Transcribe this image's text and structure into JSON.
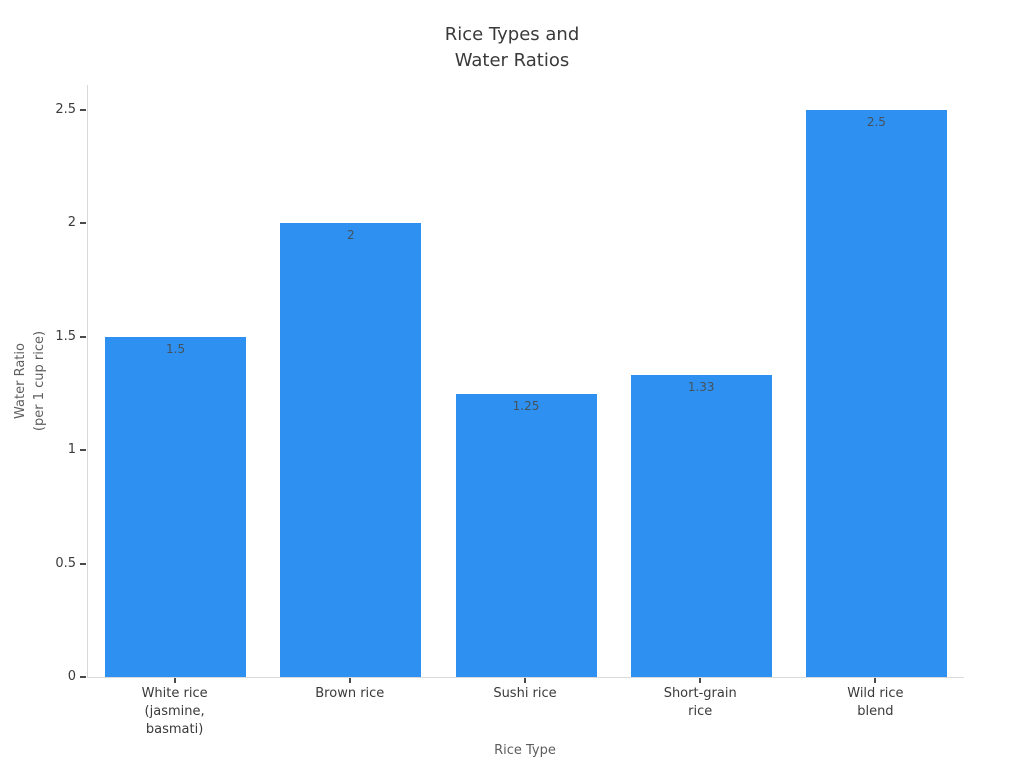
{
  "chart_data": {
    "type": "bar",
    "title": "Rice Types and\nWater Ratios",
    "xlabel": "Rice Type",
    "ylabel": "Water Ratio\n(per 1 cup rice)",
    "categories": [
      "White rice\n(jasmine,\nbasmati)",
      "Brown rice",
      "Sushi rice",
      "Short-grain\nrice",
      "Wild rice\nblend"
    ],
    "values": [
      1.5,
      2,
      1.25,
      1.33,
      2.5
    ],
    "value_labels": [
      "1.5",
      "2",
      "1.25",
      "1.33",
      "2.5"
    ],
    "ylim": [
      0,
      2.5
    ],
    "yticks": [
      0,
      0.5,
      1,
      1.5,
      2,
      2.5
    ],
    "ytick_labels": [
      "0",
      "0.5",
      "1",
      "1.5",
      "2",
      "2.5"
    ],
    "grid": false,
    "legend": "none",
    "colors": {
      "bar": "#2e91f2",
      "axis_line": "#d9d9d9",
      "tick_mark": "#4a4a4a",
      "tick_label": "#3c3c3c",
      "bar_value_label": "#44525c",
      "title": "#3a3a3a",
      "axis_title": "#5e5e5e",
      "background": "#ffffff"
    }
  }
}
